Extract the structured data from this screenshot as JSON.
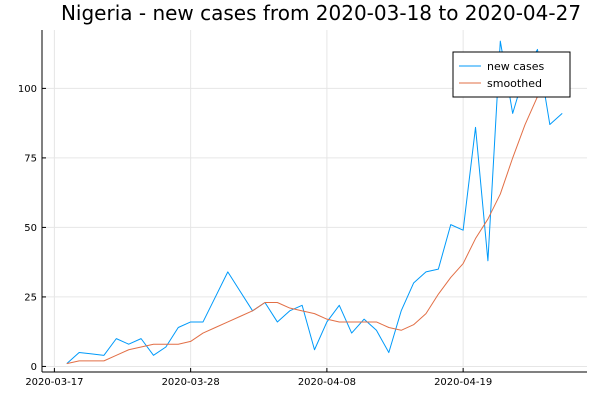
{
  "chart_data": {
    "type": "line",
    "title": "Nigeria - new cases from 2020-03-18 to 2020-04-27",
    "xlabel": "",
    "ylabel": "",
    "x_range": [
      "2020-03-16",
      "2020-04-29"
    ],
    "ylim": [
      -2,
      121
    ],
    "x_ticks": [
      "2020-03-17",
      "2020-03-28",
      "2020-04-08",
      "2020-04-19"
    ],
    "y_ticks": [
      0,
      25,
      50,
      75,
      100
    ],
    "grid": true,
    "legend": {
      "position": "top-right",
      "entries": [
        "new cases",
        "smoothed"
      ]
    },
    "x": [
      "2020-03-18",
      "2020-03-19",
      "2020-03-20",
      "2020-03-21",
      "2020-03-22",
      "2020-03-23",
      "2020-03-24",
      "2020-03-25",
      "2020-03-26",
      "2020-03-27",
      "2020-03-28",
      "2020-03-29",
      "2020-03-30",
      "2020-03-31",
      "2020-04-01",
      "2020-04-02",
      "2020-04-03",
      "2020-04-04",
      "2020-04-05",
      "2020-04-06",
      "2020-04-07",
      "2020-04-08",
      "2020-04-09",
      "2020-04-10",
      "2020-04-11",
      "2020-04-12",
      "2020-04-13",
      "2020-04-14",
      "2020-04-15",
      "2020-04-16",
      "2020-04-17",
      "2020-04-18",
      "2020-04-19",
      "2020-04-20",
      "2020-04-21",
      "2020-04-22",
      "2020-04-23",
      "2020-04-24",
      "2020-04-25",
      "2020-04-26",
      "2020-04-27"
    ],
    "series": [
      {
        "name": "new cases",
        "color": "#009AFA",
        "values": [
          1,
          5,
          4.5,
          4,
          10,
          8,
          10,
          4,
          7,
          14,
          16,
          16,
          25,
          34,
          27,
          20,
          23,
          16,
          20,
          22,
          6,
          16,
          22,
          12,
          17,
          13,
          5,
          20,
          30,
          34,
          35,
          51,
          49,
          86,
          38,
          117,
          91,
          106,
          114,
          87,
          91
        ]
      },
      {
        "name": "smoothed",
        "color": "#E26F46",
        "values": [
          1,
          2,
          2,
          2,
          4,
          6,
          7,
          8,
          8,
          8,
          9,
          12,
          14,
          16,
          18,
          20,
          23,
          23,
          21,
          20,
          19,
          17,
          16,
          16,
          16,
          16,
          14,
          13,
          15,
          19,
          26,
          32,
          37,
          46,
          53,
          62,
          75,
          87,
          97,
          104,
          106
        ]
      }
    ]
  }
}
